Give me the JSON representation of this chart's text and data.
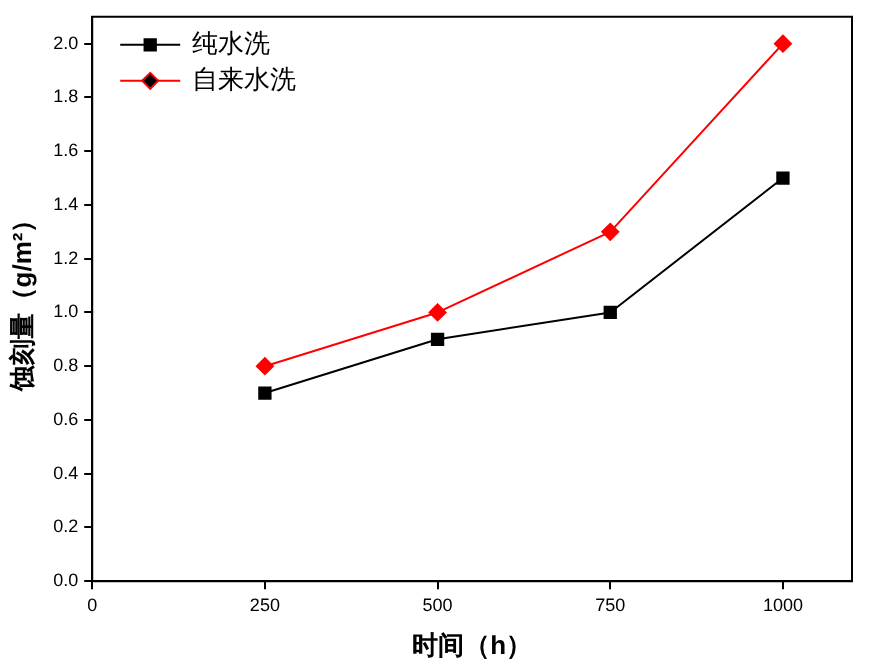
{
  "chart_data": {
    "type": "line",
    "xlabel": "时间（h）",
    "ylabel": "蚀刻量（g/m²）",
    "x": [
      250,
      500,
      750,
      1000
    ],
    "series": [
      {
        "name": "纯水洗",
        "color": "#000000",
        "marker": "square",
        "values": [
          0.7,
          0.9,
          1.0,
          1.5
        ]
      },
      {
        "name": "自来水洗",
        "color": "#ff0000",
        "marker": "diamond",
        "values": [
          0.8,
          1.0,
          1.3,
          2.0
        ]
      }
    ],
    "xlim": [
      0,
      1100
    ],
    "xticks": [
      0,
      250,
      500,
      750,
      1000
    ],
    "ylim": [
      0,
      2.1
    ],
    "yticks": [
      {
        "value": 0,
        "label": "0.0"
      },
      0.2,
      0.4,
      0.6,
      0.8,
      {
        "value": 1,
        "label": "1.0"
      },
      1.2,
      1.4,
      1.6,
      1.8,
      {
        "value": 2,
        "label": "2.0"
      }
    ],
    "grid": false,
    "legend": "top left",
    "line_style": "solid"
  }
}
